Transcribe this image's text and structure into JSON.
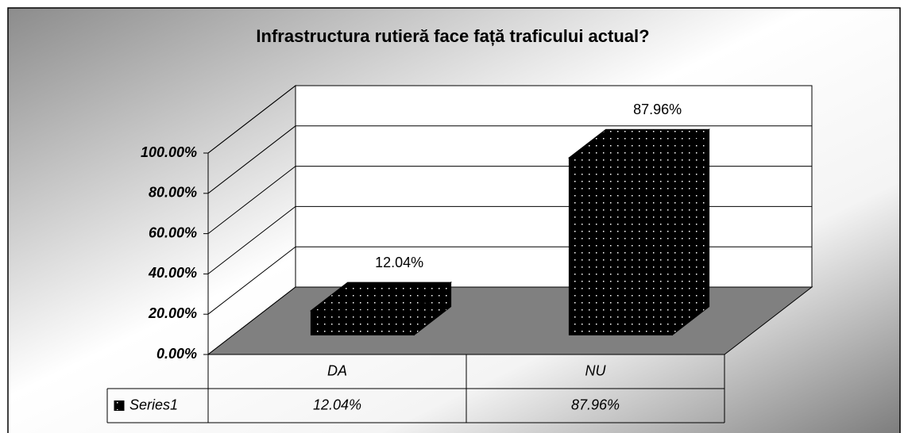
{
  "chart_data": {
    "type": "bar",
    "title": "Infrastructura rutieră face față traficului actual?",
    "categories": [
      "DA",
      "NU"
    ],
    "series": [
      {
        "name": "Series1",
        "color": "#000000",
        "values": [
          12.04,
          87.96
        ],
        "value_labels": [
          "12.04%",
          "87.96%"
        ]
      }
    ],
    "ylim": [
      0,
      100
    ],
    "yticks": [
      {
        "value": 0,
        "label": "0.00%"
      },
      {
        "value": 20,
        "label": "20.00%"
      },
      {
        "value": 40,
        "label": "40.00%"
      },
      {
        "value": 60,
        "label": "60.00%"
      },
      {
        "value": 80,
        "label": "80.00%"
      },
      {
        "value": 100,
        "label": "100.00%"
      }
    ],
    "grid": true,
    "data_table": true
  }
}
